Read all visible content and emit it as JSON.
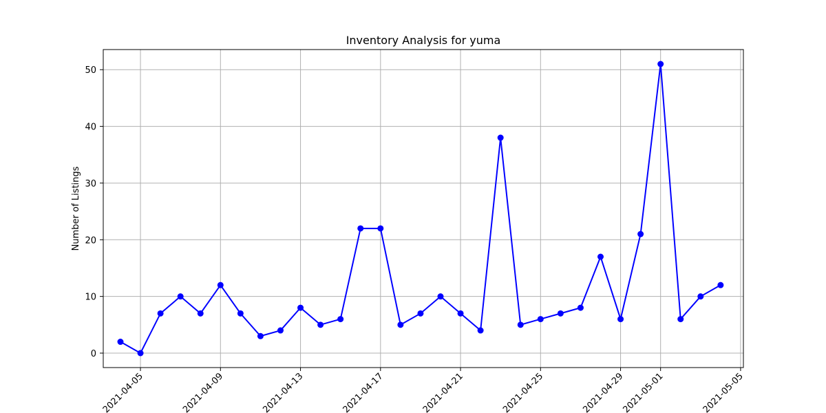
{
  "chart_data": {
    "type": "line",
    "title": "Inventory Analysis for yuma",
    "xlabel": "",
    "ylabel": "Number of Listings",
    "grid": true,
    "x": [
      "2021-04-04",
      "2021-04-05",
      "2021-04-06",
      "2021-04-07",
      "2021-04-08",
      "2021-04-09",
      "2021-04-10",
      "2021-04-11",
      "2021-04-12",
      "2021-04-13",
      "2021-04-14",
      "2021-04-15",
      "2021-04-16",
      "2021-04-17",
      "2021-04-18",
      "2021-04-19",
      "2021-04-20",
      "2021-04-21",
      "2021-04-22",
      "2021-04-23",
      "2021-04-24",
      "2021-04-25",
      "2021-04-26",
      "2021-04-27",
      "2021-04-28",
      "2021-04-29",
      "2021-04-30",
      "2021-05-01",
      "2021-05-02",
      "2021-05-03",
      "2021-05-04"
    ],
    "series": [
      {
        "color": "#0000ff",
        "marker": "circle",
        "values": [
          2,
          0,
          7,
          10,
          7,
          12,
          7,
          3,
          4,
          8,
          5,
          6,
          22,
          22,
          5,
          7,
          10,
          7,
          4,
          38,
          5,
          6,
          7,
          8,
          17,
          6,
          21,
          51,
          6,
          10,
          12
        ]
      }
    ],
    "xlim": [
      "2021-04-03",
      "2021-05-05"
    ],
    "ylim": [
      -2.55,
      53.55
    ],
    "xticks": [
      "2021-04-05",
      "2021-04-09",
      "2021-04-13",
      "2021-04-17",
      "2021-04-21",
      "2021-04-25",
      "2021-04-29",
      "2021-05-01",
      "2021-05-05"
    ],
    "yticks": [
      0,
      10,
      20,
      30,
      40,
      50
    ]
  }
}
